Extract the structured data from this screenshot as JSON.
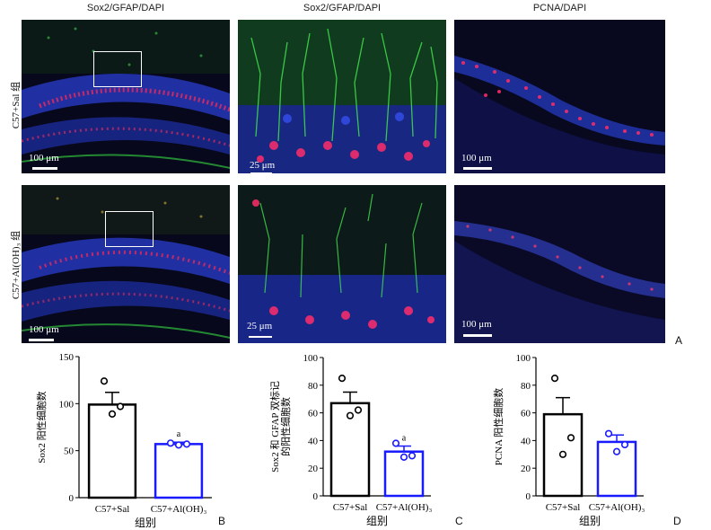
{
  "figure": {
    "column_titles": [
      "Sox2/GFAP/DAPI",
      "Sox2/GFAP/DAPI",
      "PCNA/DAPI"
    ],
    "row_labels": [
      "C57+Sal 组",
      "C57+Al(OH)₃ 组"
    ],
    "panel_letters": [
      "A",
      "B",
      "C",
      "D"
    ],
    "scale_bars": {
      "row1": [
        "100 μm",
        "25 μm",
        "100 μm"
      ],
      "row2": [
        "100 μm",
        "25 μm",
        "100 μm"
      ]
    }
  },
  "chart_data": [
    {
      "type": "bar",
      "panel": "B",
      "categories": [
        "C57+Sal",
        "C57+Al(OH)₃"
      ],
      "values": [
        99,
        57
      ],
      "errors": [
        13,
        2
      ],
      "points": [
        [
          124,
          89,
          97
        ],
        [
          58,
          56,
          57
        ]
      ],
      "significance": [
        "",
        "a"
      ],
      "ylabel": "Sox2 阳性细胞数",
      "xlabel": "组别",
      "ylim": [
        0,
        150
      ],
      "yticks": [
        0,
        50,
        100,
        150
      ],
      "colors": [
        "#000000",
        "#1a1aff"
      ]
    },
    {
      "type": "bar",
      "panel": "C",
      "categories": [
        "C57+Sal",
        "C57+Al(OH)₃"
      ],
      "values": [
        67,
        32
      ],
      "errors": [
        8,
        4
      ],
      "points": [
        [
          85,
          58,
          62
        ],
        [
          38,
          28,
          29
        ]
      ],
      "significance": [
        "",
        "a"
      ],
      "ylabel": "Sox2 和 GFAP 双标记的阳性细胞数",
      "ylabel_lines": [
        "Sox2 和 GFAP 双标记",
        "的阳性细胞数"
      ],
      "xlabel": "组别",
      "ylim": [
        0,
        100
      ],
      "yticks": [
        0,
        20,
        40,
        60,
        80,
        100
      ],
      "colors": [
        "#000000",
        "#1a1aff"
      ]
    },
    {
      "type": "bar",
      "panel": "D",
      "categories": [
        "C57+Sal",
        "C57+Al(OH)₃"
      ],
      "values": [
        59,
        39
      ],
      "errors": [
        12,
        5
      ],
      "points": [
        [
          85,
          30,
          42
        ],
        [
          45,
          32,
          37
        ]
      ],
      "significance": [
        "",
        ""
      ],
      "ylabel": "PCNA 阳性细胞数",
      "xlabel": "组别",
      "ylim": [
        0,
        100
      ],
      "yticks": [
        0,
        20,
        40,
        60,
        80,
        100
      ],
      "colors": [
        "#000000",
        "#1a1aff"
      ]
    }
  ]
}
